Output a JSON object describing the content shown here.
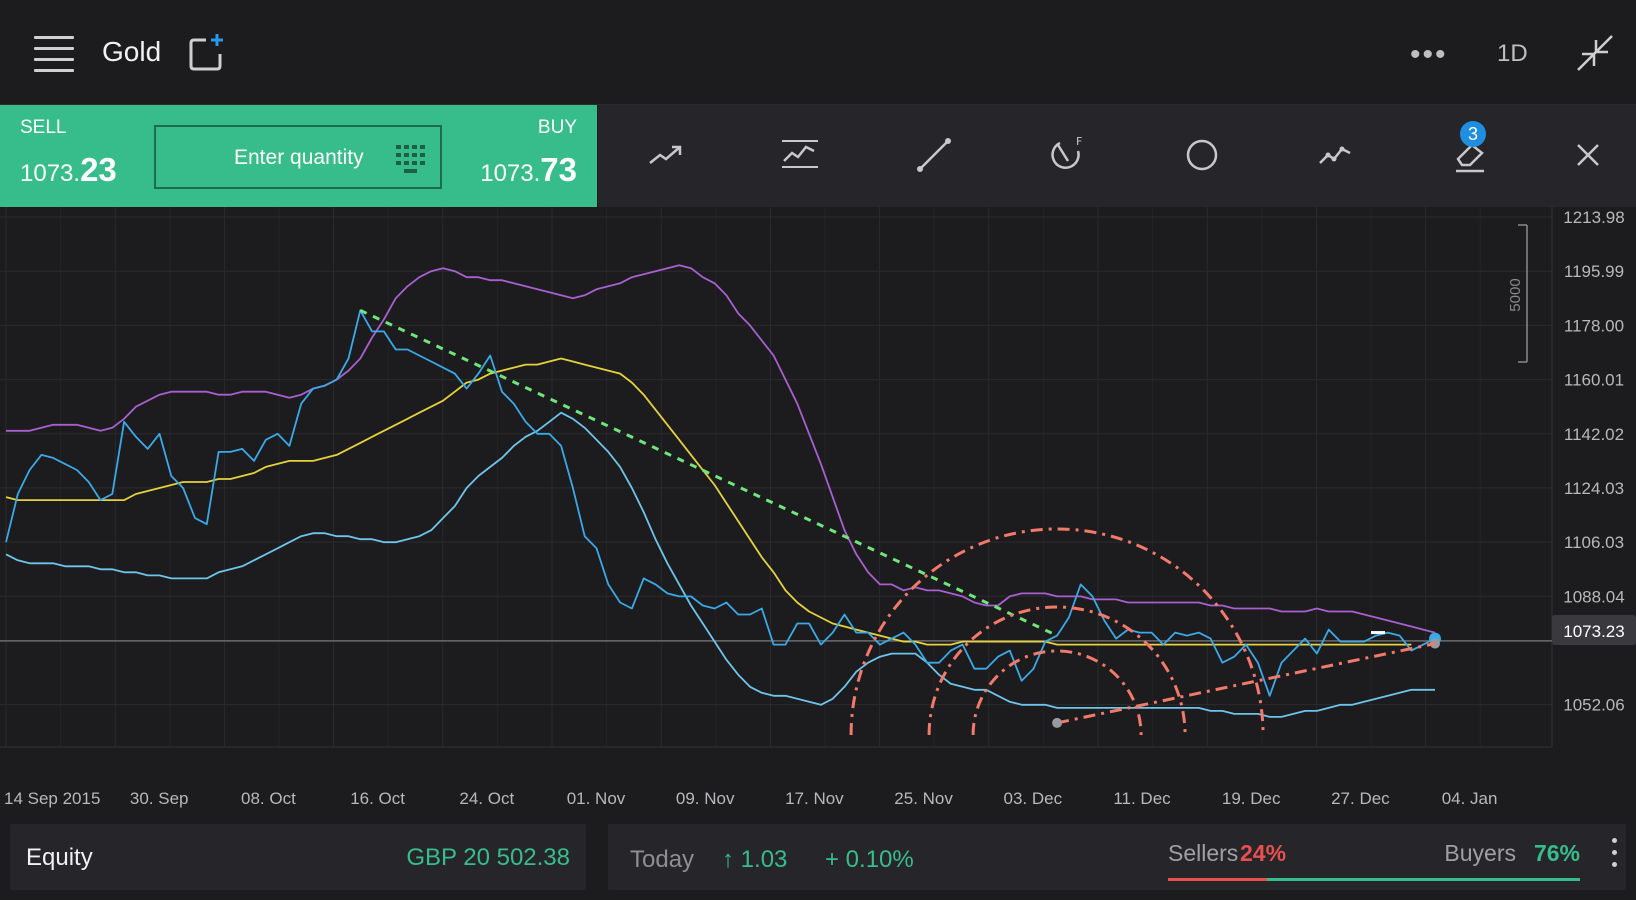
{
  "header": {
    "title": "Gold",
    "period": "1D",
    "icons": [
      "menu-icon",
      "add-watchlist-icon",
      "more-icon",
      "collapse-icon"
    ]
  },
  "trade": {
    "sell_label": "SELL",
    "sell_price_prefix": "1073.",
    "sell_price_big": "23",
    "quantity_placeholder": "Enter quantity",
    "buy_label": "BUY",
    "buy_price_prefix": "1073.",
    "buy_price_big": "73"
  },
  "toolbar": {
    "tools": [
      "trend-line-icon",
      "channel-icon",
      "line-segment-icon",
      "fibonacci-icon",
      "circle-icon",
      "path-icon",
      "eraser-icon",
      "close-icon"
    ],
    "eraser_badge": "3"
  },
  "chart_data": {
    "type": "line",
    "x_labels": [
      "14 Sep 2015",
      "30. Sep",
      "08. Oct",
      "16. Oct",
      "24. Oct",
      "01. Nov",
      "09. Nov",
      "17. Nov",
      "25. Nov",
      "03. Dec",
      "11. Dec",
      "19. Dec",
      "27. Dec",
      "04. Jan"
    ],
    "y_labels": [
      "1213.98",
      "1195.99",
      "1178.00",
      "1160.01",
      "1142.02",
      "1124.03",
      "1106.03",
      "1088.04",
      "1052.06"
    ],
    "ylim": [
      1038,
      1214
    ],
    "current_price": "1073.23",
    "volume_scale_label": "5000",
    "grid": true,
    "colors": {
      "price": "#3aa9e8",
      "upper_band": "#a95fd0",
      "middle_band": "#e6d23a",
      "lower_band": "#6ec4ea",
      "trendline": "#6fe57a",
      "fibonacci": "#f3796a",
      "current_price_line": "#6b6b70"
    },
    "series": [
      {
        "values": [
          1106,
          1122,
          1130,
          1135,
          1134,
          1132,
          1130,
          1126,
          1120,
          1122,
          1146,
          1141,
          1137,
          1142,
          1128,
          1124,
          1114,
          1112,
          1136,
          1136,
          1137,
          1133,
          1140,
          1142,
          1138,
          1152,
          1157,
          1158,
          1160,
          1167,
          1183,
          1176,
          1176,
          1170,
          1170,
          1168,
          1166,
          1164,
          1162,
          1157,
          1162,
          1168,
          1156,
          1152,
          1146,
          1142,
          1142,
          1138,
          1124,
          1108,
          1104,
          1092,
          1086,
          1084,
          1094,
          1092,
          1089,
          1088,
          1088,
          1085,
          1084,
          1086,
          1082,
          1082,
          1084,
          1072,
          1072,
          1079,
          1079,
          1072,
          1076,
          1082,
          1076,
          1076,
          1072,
          1074,
          1076,
          1072,
          1066,
          1066,
          1070,
          1072,
          1064,
          1064,
          1068,
          1070,
          1060,
          1064,
          1073,
          1075,
          1081,
          1092,
          1088,
          1080,
          1074,
          1077,
          1076,
          1076,
          1072,
          1076,
          1075,
          1076,
          1074,
          1066,
          1068,
          1072,
          1066,
          1055,
          1066,
          1070,
          1074,
          1069,
          1077,
          1073,
          1073,
          1073,
          1075,
          1076,
          1075,
          1070,
          1072,
          1074
        ]
      },
      {
        "values": [
          1143,
          1143,
          1143,
          1144,
          1145,
          1145,
          1145,
          1144,
          1143,
          1144,
          1147,
          1151,
          1153,
          1155,
          1156,
          1156,
          1156,
          1156,
          1155,
          1155,
          1156,
          1156,
          1156,
          1155,
          1154,
          1155,
          1157,
          1158,
          1160,
          1163,
          1167,
          1174,
          1180,
          1187,
          1191,
          1194,
          1196,
          1197,
          1196,
          1194,
          1194,
          1193,
          1193,
          1192,
          1191,
          1190,
          1189,
          1188,
          1187,
          1188,
          1190,
          1191,
          1192,
          1194,
          1195,
          1196,
          1197,
          1198,
          1197,
          1194,
          1192,
          1188,
          1182,
          1178,
          1173,
          1168,
          1160,
          1152,
          1142,
          1132,
          1121,
          1110,
          1102,
          1096,
          1092,
          1092,
          1090,
          1091,
          1090,
          1090,
          1089,
          1088,
          1086,
          1085,
          1085,
          1088,
          1089,
          1089,
          1089,
          1088,
          1088,
          1088,
          1087,
          1087,
          1087,
          1086,
          1086,
          1086,
          1086,
          1086,
          1086,
          1086,
          1085,
          1085,
          1084,
          1084,
          1084,
          1084,
          1083,
          1083,
          1083,
          1084,
          1083,
          1083,
          1083,
          1082,
          1081,
          1080,
          1079,
          1078,
          1077,
          1076
        ]
      },
      {
        "values": [
          1121,
          1120,
          1120,
          1120,
          1120,
          1120,
          1120,
          1120,
          1120,
          1120,
          1120,
          1122,
          1123,
          1124,
          1125,
          1126,
          1126,
          1126,
          1127,
          1127,
          1128,
          1129,
          1131,
          1132,
          1133,
          1133,
          1133,
          1134,
          1135,
          1137,
          1139,
          1141,
          1143,
          1145,
          1147,
          1149,
          1151,
          1153,
          1156,
          1159,
          1160,
          1162,
          1163,
          1164,
          1165,
          1165,
          1166,
          1167,
          1166,
          1165,
          1164,
          1163,
          1162,
          1159,
          1155,
          1150,
          1145,
          1140,
          1135,
          1130,
          1125,
          1119,
          1113,
          1107,
          1101,
          1096,
          1090,
          1086,
          1083,
          1081,
          1079,
          1078,
          1077,
          1076,
          1075,
          1074,
          1073,
          1073,
          1072,
          1072,
          1072,
          1073,
          1073,
          1073,
          1073,
          1073,
          1073,
          1073,
          1073,
          1072,
          1072,
          1072,
          1072,
          1072,
          1072,
          1072,
          1072,
          1072,
          1072,
          1072,
          1072,
          1072,
          1072,
          1072,
          1072,
          1072,
          1072,
          1072,
          1072,
          1072,
          1072,
          1072,
          1072,
          1072,
          1072,
          1072,
          1072,
          1072,
          1072,
          1072
        ]
      },
      {
        "values": [
          1102,
          1100,
          1099,
          1099,
          1099,
          1098,
          1098,
          1098,
          1097,
          1097,
          1096,
          1096,
          1095,
          1095,
          1094,
          1094,
          1094,
          1094,
          1096,
          1097,
          1098,
          1100,
          1102,
          1104,
          1106,
          1108,
          1109,
          1109,
          1108,
          1108,
          1107,
          1107,
          1106,
          1106,
          1107,
          1108,
          1110,
          1114,
          1118,
          1124,
          1128,
          1131,
          1134,
          1138,
          1141,
          1143,
          1146,
          1149,
          1147,
          1144,
          1140,
          1136,
          1131,
          1124,
          1116,
          1107,
          1099,
          1092,
          1085,
          1079,
          1073,
          1067,
          1062,
          1058,
          1056,
          1055,
          1055,
          1054,
          1053,
          1052,
          1054,
          1058,
          1063,
          1066,
          1068,
          1069,
          1069,
          1069,
          1066,
          1062,
          1059,
          1058,
          1057,
          1057,
          1055,
          1053,
          1052,
          1052,
          1052,
          1051,
          1051,
          1051,
          1051,
          1051,
          1051,
          1051,
          1051,
          1051,
          1051,
          1051,
          1051,
          1051,
          1050,
          1050,
          1049,
          1049,
          1049,
          1048,
          1048,
          1049,
          1050,
          1050,
          1051,
          1052,
          1052,
          1053,
          1054,
          1055,
          1056,
          1057,
          1057,
          1057
        ]
      }
    ]
  },
  "bottom": {
    "equity_label": "Equity",
    "equity_value": "GBP 20 502.38",
    "today_label": "Today",
    "change": "1.03",
    "change_pct": "+ 0.10%",
    "sellers_label": "Sellers",
    "sellers_pct": "24%",
    "buyers_label": "Buyers",
    "buyers_pct": "76%"
  }
}
